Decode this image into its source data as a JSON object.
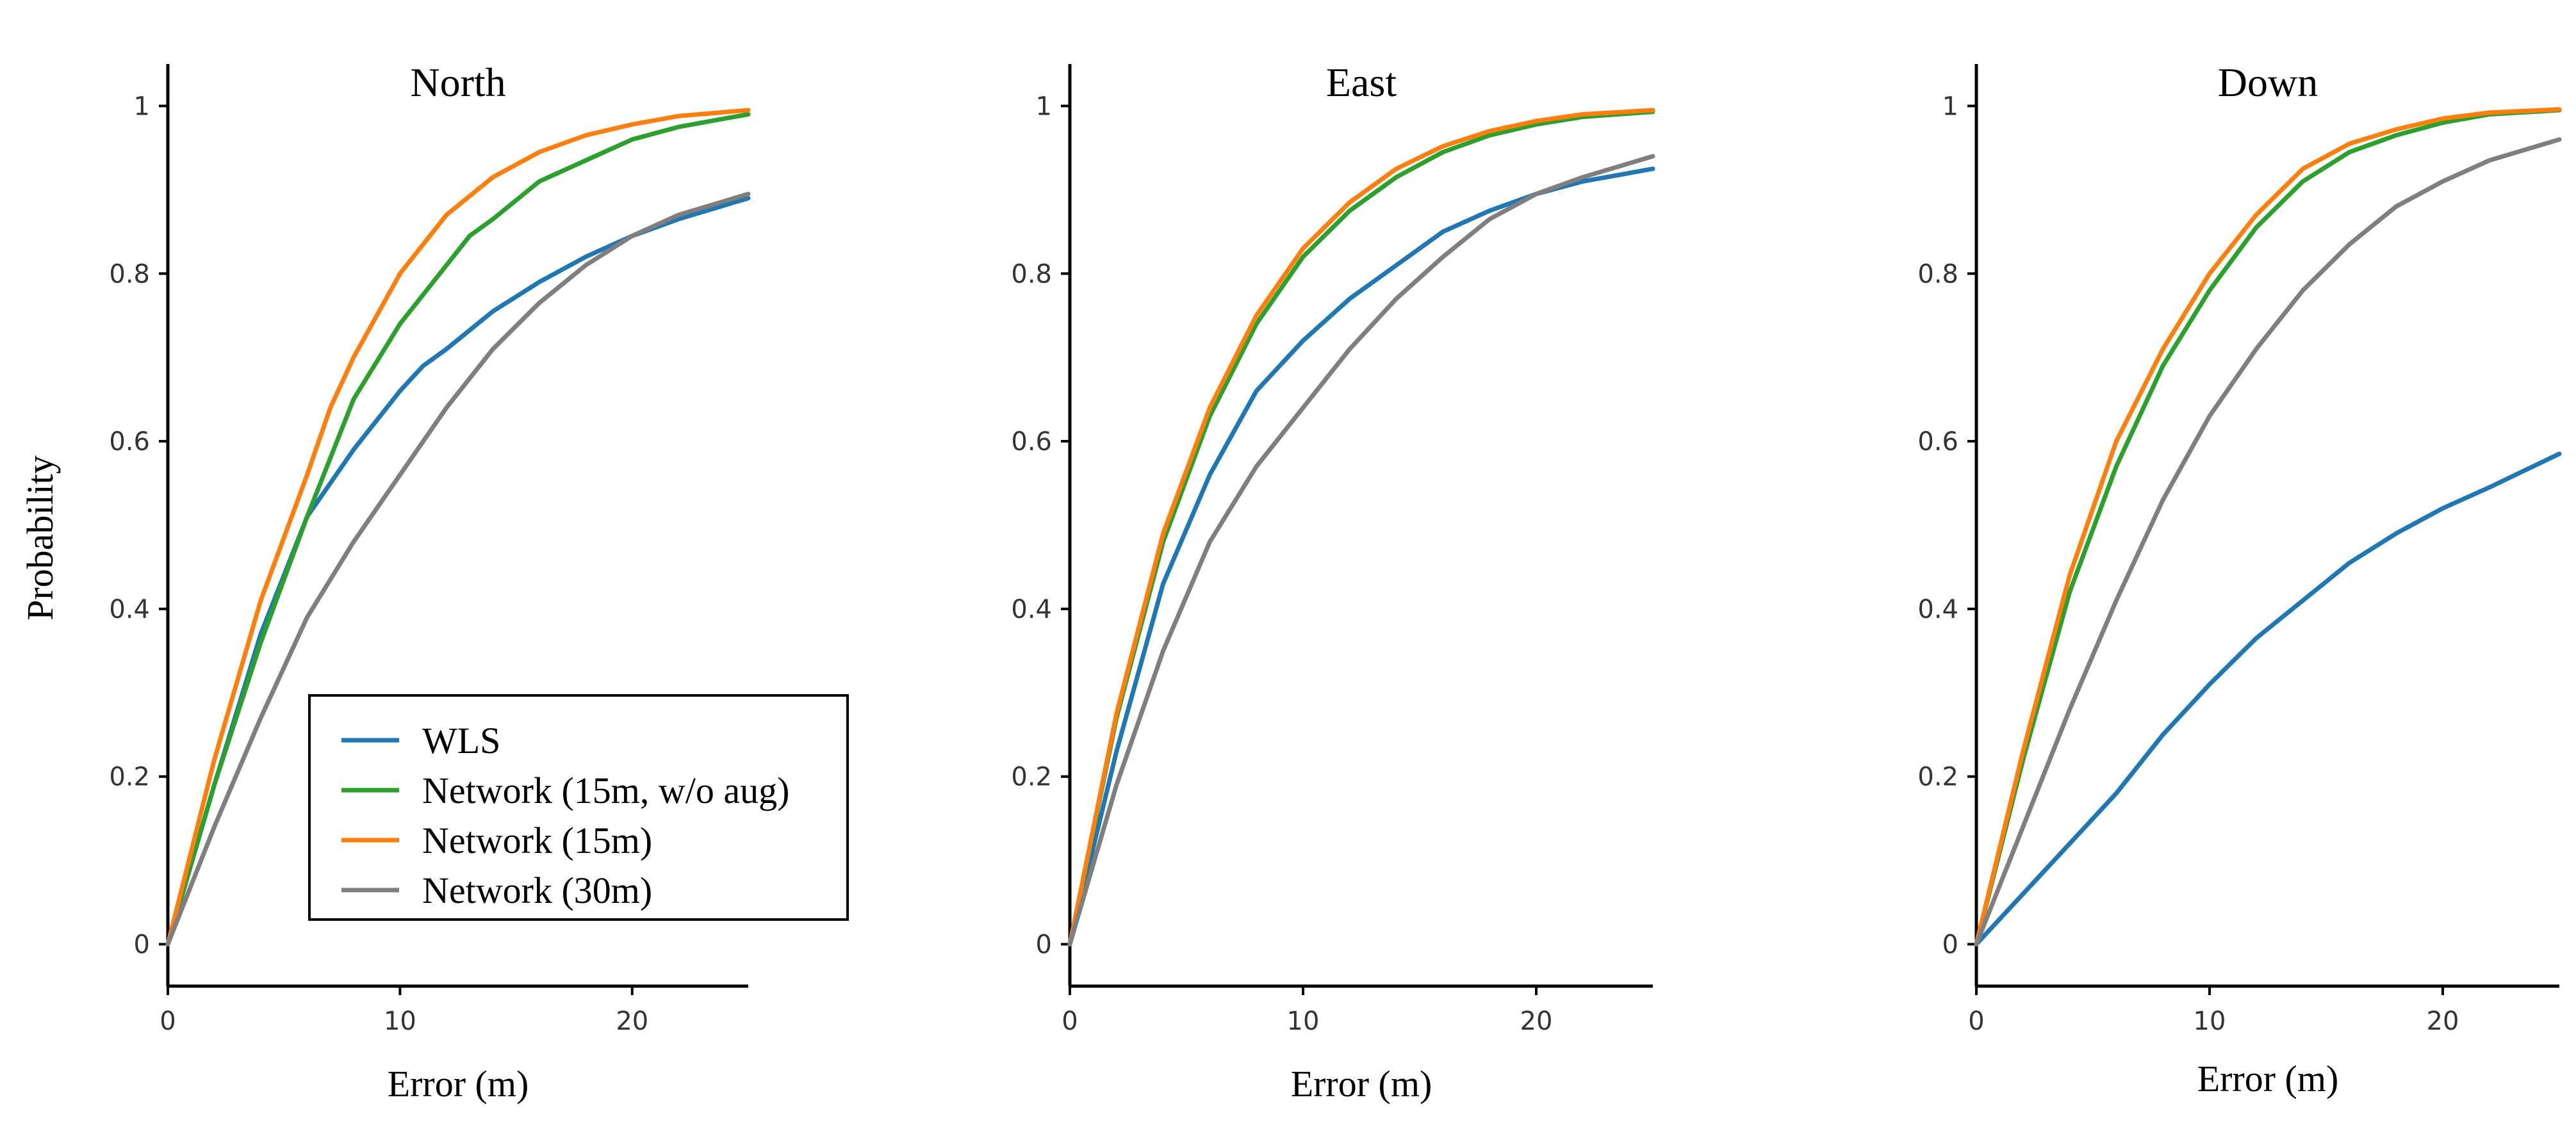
{
  "chart_data": [
    {
      "type": "line",
      "title": "North",
      "xlabel": "Error (m)",
      "ylabel": "Probability",
      "xlim": [
        0,
        25
      ],
      "ylim": [
        -0.05,
        1.05
      ],
      "xticks": [
        0,
        10,
        20
      ],
      "yticks": [
        0,
        0.2,
        0.4,
        0.6,
        0.8,
        1
      ],
      "ytick_labels": [
        "0",
        "0.2",
        "0.4",
        "0.6",
        "0.8",
        "1"
      ],
      "legend": "bottom-right",
      "series": [
        {
          "name": "WLS",
          "color": "#1f77b4",
          "x": [
            0,
            2,
            4,
            6,
            8,
            10,
            11,
            12,
            14,
            16,
            18,
            20,
            22,
            25
          ],
          "y": [
            0,
            0.19,
            0.37,
            0.51,
            0.59,
            0.66,
            0.69,
            0.71,
            0.755,
            0.79,
            0.82,
            0.845,
            0.865,
            0.89
          ]
        },
        {
          "name": "Network (15m, w/o aug)",
          "color": "#2ca02c",
          "x": [
            0,
            2,
            4,
            6,
            8,
            10,
            12,
            13,
            14,
            16,
            18,
            20,
            22,
            25
          ],
          "y": [
            0,
            0.19,
            0.36,
            0.51,
            0.65,
            0.74,
            0.81,
            0.845,
            0.865,
            0.91,
            0.935,
            0.96,
            0.975,
            0.99
          ]
        },
        {
          "name": "Network (15m)",
          "color": "#ff7f0e",
          "x": [
            0,
            2,
            4,
            6,
            7,
            8,
            10,
            12,
            14,
            16,
            18,
            20,
            22,
            25
          ],
          "y": [
            0,
            0.22,
            0.41,
            0.56,
            0.64,
            0.7,
            0.8,
            0.87,
            0.915,
            0.945,
            0.965,
            0.978,
            0.988,
            0.995
          ]
        },
        {
          "name": "Network (30m)",
          "color": "#7f7f7f",
          "x": [
            0,
            2,
            4,
            5,
            6,
            8,
            10,
            12,
            14,
            16,
            18,
            20,
            22,
            25
          ],
          "y": [
            0,
            0.14,
            0.27,
            0.33,
            0.39,
            0.48,
            0.56,
            0.64,
            0.71,
            0.765,
            0.81,
            0.845,
            0.87,
            0.895
          ]
        }
      ]
    },
    {
      "type": "line",
      "title": "East",
      "xlabel": "Error (m)",
      "ylabel": "",
      "xlim": [
        0,
        25
      ],
      "ylim": [
        -0.05,
        1.05
      ],
      "xticks": [
        0,
        10,
        20
      ],
      "yticks": [
        0,
        0.2,
        0.4,
        0.6,
        0.8,
        1
      ],
      "ytick_labels": [
        "0",
        "0.2",
        "0.4",
        "0.6",
        "0.8",
        "1"
      ],
      "series": [
        {
          "name": "WLS",
          "color": "#1f77b4",
          "x": [
            0,
            2,
            4,
            6,
            8,
            10,
            11,
            12,
            14,
            16,
            18,
            20,
            22,
            25
          ],
          "y": [
            0,
            0.23,
            0.43,
            0.56,
            0.66,
            0.72,
            0.745,
            0.77,
            0.81,
            0.85,
            0.875,
            0.895,
            0.91,
            0.925
          ]
        },
        {
          "name": "Network (15m, w/o aug)",
          "color": "#2ca02c",
          "x": [
            0,
            2,
            4,
            6,
            8,
            10,
            12,
            14,
            16,
            18,
            20,
            22,
            25
          ],
          "y": [
            0,
            0.27,
            0.48,
            0.63,
            0.74,
            0.82,
            0.875,
            0.915,
            0.945,
            0.965,
            0.978,
            0.987,
            0.993
          ]
        },
        {
          "name": "Network (15m)",
          "color": "#ff7f0e",
          "x": [
            0,
            2,
            4,
            6,
            8,
            10,
            12,
            14,
            16,
            18,
            20,
            22,
            25
          ],
          "y": [
            0,
            0.275,
            0.49,
            0.64,
            0.75,
            0.83,
            0.885,
            0.925,
            0.952,
            0.97,
            0.982,
            0.99,
            0.995
          ]
        },
        {
          "name": "Network (30m)",
          "color": "#7f7f7f",
          "x": [
            0,
            2,
            4,
            6,
            8,
            10,
            12,
            14,
            16,
            18,
            20,
            22,
            25
          ],
          "y": [
            0,
            0.19,
            0.35,
            0.48,
            0.57,
            0.64,
            0.71,
            0.77,
            0.82,
            0.865,
            0.895,
            0.915,
            0.94
          ]
        }
      ]
    },
    {
      "type": "line",
      "title": "Down",
      "xlabel": "Error (m)",
      "ylabel": "",
      "xlim": [
        0,
        25
      ],
      "ylim": [
        -0.05,
        1.05
      ],
      "xticks": [
        0,
        10,
        20
      ],
      "yticks": [
        0,
        0.2,
        0.4,
        0.6,
        0.8,
        1
      ],
      "ytick_labels": [
        "0",
        "0.2",
        "0.4",
        "0.6",
        "0.8",
        "1"
      ],
      "series": [
        {
          "name": "WLS",
          "color": "#1f77b4",
          "x": [
            0,
            2,
            4,
            6,
            8,
            10,
            12,
            14,
            16,
            18,
            20,
            22,
            25
          ],
          "y": [
            0,
            0.06,
            0.12,
            0.18,
            0.25,
            0.31,
            0.365,
            0.41,
            0.455,
            0.49,
            0.52,
            0.545,
            0.585
          ]
        },
        {
          "name": "Network (15m, w/o aug)",
          "color": "#2ca02c",
          "x": [
            0,
            2,
            4,
            6,
            8,
            10,
            12,
            14,
            16,
            18,
            20,
            22,
            25
          ],
          "y": [
            0,
            0.22,
            0.42,
            0.57,
            0.69,
            0.78,
            0.855,
            0.91,
            0.945,
            0.965,
            0.98,
            0.99,
            0.995
          ]
        },
        {
          "name": "Network (15m)",
          "color": "#ff7f0e",
          "x": [
            0,
            2,
            4,
            6,
            8,
            10,
            12,
            14,
            16,
            18,
            20,
            22,
            25
          ],
          "y": [
            0,
            0.23,
            0.44,
            0.6,
            0.71,
            0.8,
            0.87,
            0.925,
            0.955,
            0.972,
            0.985,
            0.992,
            0.996
          ]
        },
        {
          "name": "Network (30m)",
          "color": "#7f7f7f",
          "x": [
            0,
            2,
            4,
            6,
            8,
            10,
            12,
            14,
            16,
            18,
            20,
            22,
            25
          ],
          "y": [
            0,
            0.14,
            0.28,
            0.41,
            0.53,
            0.63,
            0.71,
            0.78,
            0.835,
            0.88,
            0.91,
            0.935,
            0.96
          ]
        }
      ]
    }
  ]
}
